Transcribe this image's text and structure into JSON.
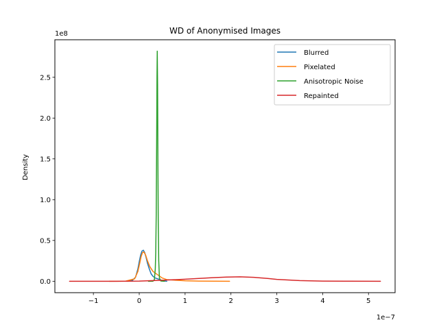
{
  "chart_data": {
    "type": "line",
    "title": "WD of Anonymised Images",
    "xlabel": "",
    "ylabel": "Density",
    "x_offset_label": "1e−7",
    "y_offset_label": "1e8",
    "x_scale": 1e-07,
    "y_scale": 100000000.0,
    "xlim": [
      -1.84e-07,
      5.58e-07
    ],
    "ylim": [
      -14000000.0,
      296000000.0
    ],
    "x_ticks": [
      -1e-07,
      0,
      1e-07,
      2e-07,
      3e-07,
      4e-07,
      5e-07
    ],
    "x_tick_labels": [
      "−1",
      "0",
      "1",
      "2",
      "3",
      "4",
      "5"
    ],
    "y_ticks": [
      0,
      50000000.0,
      100000000.0,
      150000000.0,
      200000000.0,
      250000000.0
    ],
    "y_tick_labels": [
      "0.0",
      "0.5",
      "1.0",
      "1.5",
      "2.0",
      "2.5"
    ],
    "grid": false,
    "legend_position": "top-right",
    "series": [
      {
        "name": "Blurred",
        "color": "#1f77b4",
        "x": [
          -2.5e-08,
          -1.5e-08,
          -8e-09,
          -3e-09,
          0,
          3e-09,
          6e-09,
          9e-09,
          1.2e-08,
          1.5e-08,
          1.8e-08,
          2.2e-08,
          2.6e-08,
          3e-08,
          3.5e-08,
          4e-08,
          4.5e-08,
          5e-08,
          5.5e-08,
          6e-08
        ],
        "y": [
          0,
          1000000.0,
          5000000.0,
          15000000.0,
          24000000.0,
          32000000.0,
          37000000.0,
          38000000.0,
          35000000.0,
          29000000.0,
          22000000.0,
          15000000.0,
          9000000.0,
          6000000.0,
          4000000.0,
          3000000.0,
          2000000.0,
          1000000.0,
          400000.0,
          0
        ]
      },
      {
        "name": "Pixelated",
        "color": "#ff7f0e",
        "x": [
          -6.5e-08,
          -3e-08,
          -1e-08,
          -3e-09,
          1e-09,
          4e-09,
          7e-09,
          1e-08,
          1.4e-08,
          1.8e-08,
          2.3e-08,
          3e-08,
          4e-08,
          5e-08,
          6e-08,
          8e-08,
          1e-07,
          1.3e-07,
          1.65e-07,
          1.97e-07
        ],
        "y": [
          0,
          100000.0,
          3000000.0,
          12000000.0,
          22000000.0,
          30000000.0,
          35000000.0,
          36000000.0,
          32000000.0,
          25000000.0,
          18000000.0,
          12000000.0,
          8000000.0,
          4000000.0,
          2000000.0,
          1200000.0,
          600000.0,
          200000.0,
          50000.0,
          0
        ]
      },
      {
        "name": "Anisotropic Noise",
        "color": "#2ca02c",
        "x": [
          2e-08,
          3e-08,
          3.3e-08,
          3.5e-08,
          3.6e-08,
          3.7e-08,
          3.8e-08,
          3.87e-08,
          3.93e-08,
          4e-08,
          4.07e-08,
          4.15e-08,
          4.25e-08,
          4.4e-08,
          4.7e-08,
          5.5e-08
        ],
        "y": [
          0,
          100000.0,
          2000000.0,
          15000000.0,
          35000000.0,
          80000000.0,
          170000000.0,
          250000000.0,
          282000000.0,
          240000000.0,
          150000000.0,
          70000000.0,
          25000000.0,
          4000000.0,
          300000.0,
          0
        ]
      },
      {
        "name": "Repainted",
        "color": "#d62728",
        "x": [
          -1.52e-07,
          -1e-07,
          -5e-08,
          0,
          2e-08,
          5e-08,
          8e-08,
          1e-07,
          1.3e-07,
          1.6e-07,
          1.9e-07,
          2.2e-07,
          2.5e-07,
          2.8e-07,
          3e-07,
          3.5e-07,
          4e-07,
          4.5e-07,
          5.26e-07
        ],
        "y": [
          0,
          0,
          0,
          200000.0,
          600000.0,
          1200000.0,
          2000000.0,
          2500000.0,
          3400000.0,
          4400000.0,
          5100000.0,
          5400000.0,
          4800000.0,
          3400000.0,
          2300000.0,
          800000.0,
          200000.0,
          30000.0,
          0
        ]
      }
    ]
  }
}
